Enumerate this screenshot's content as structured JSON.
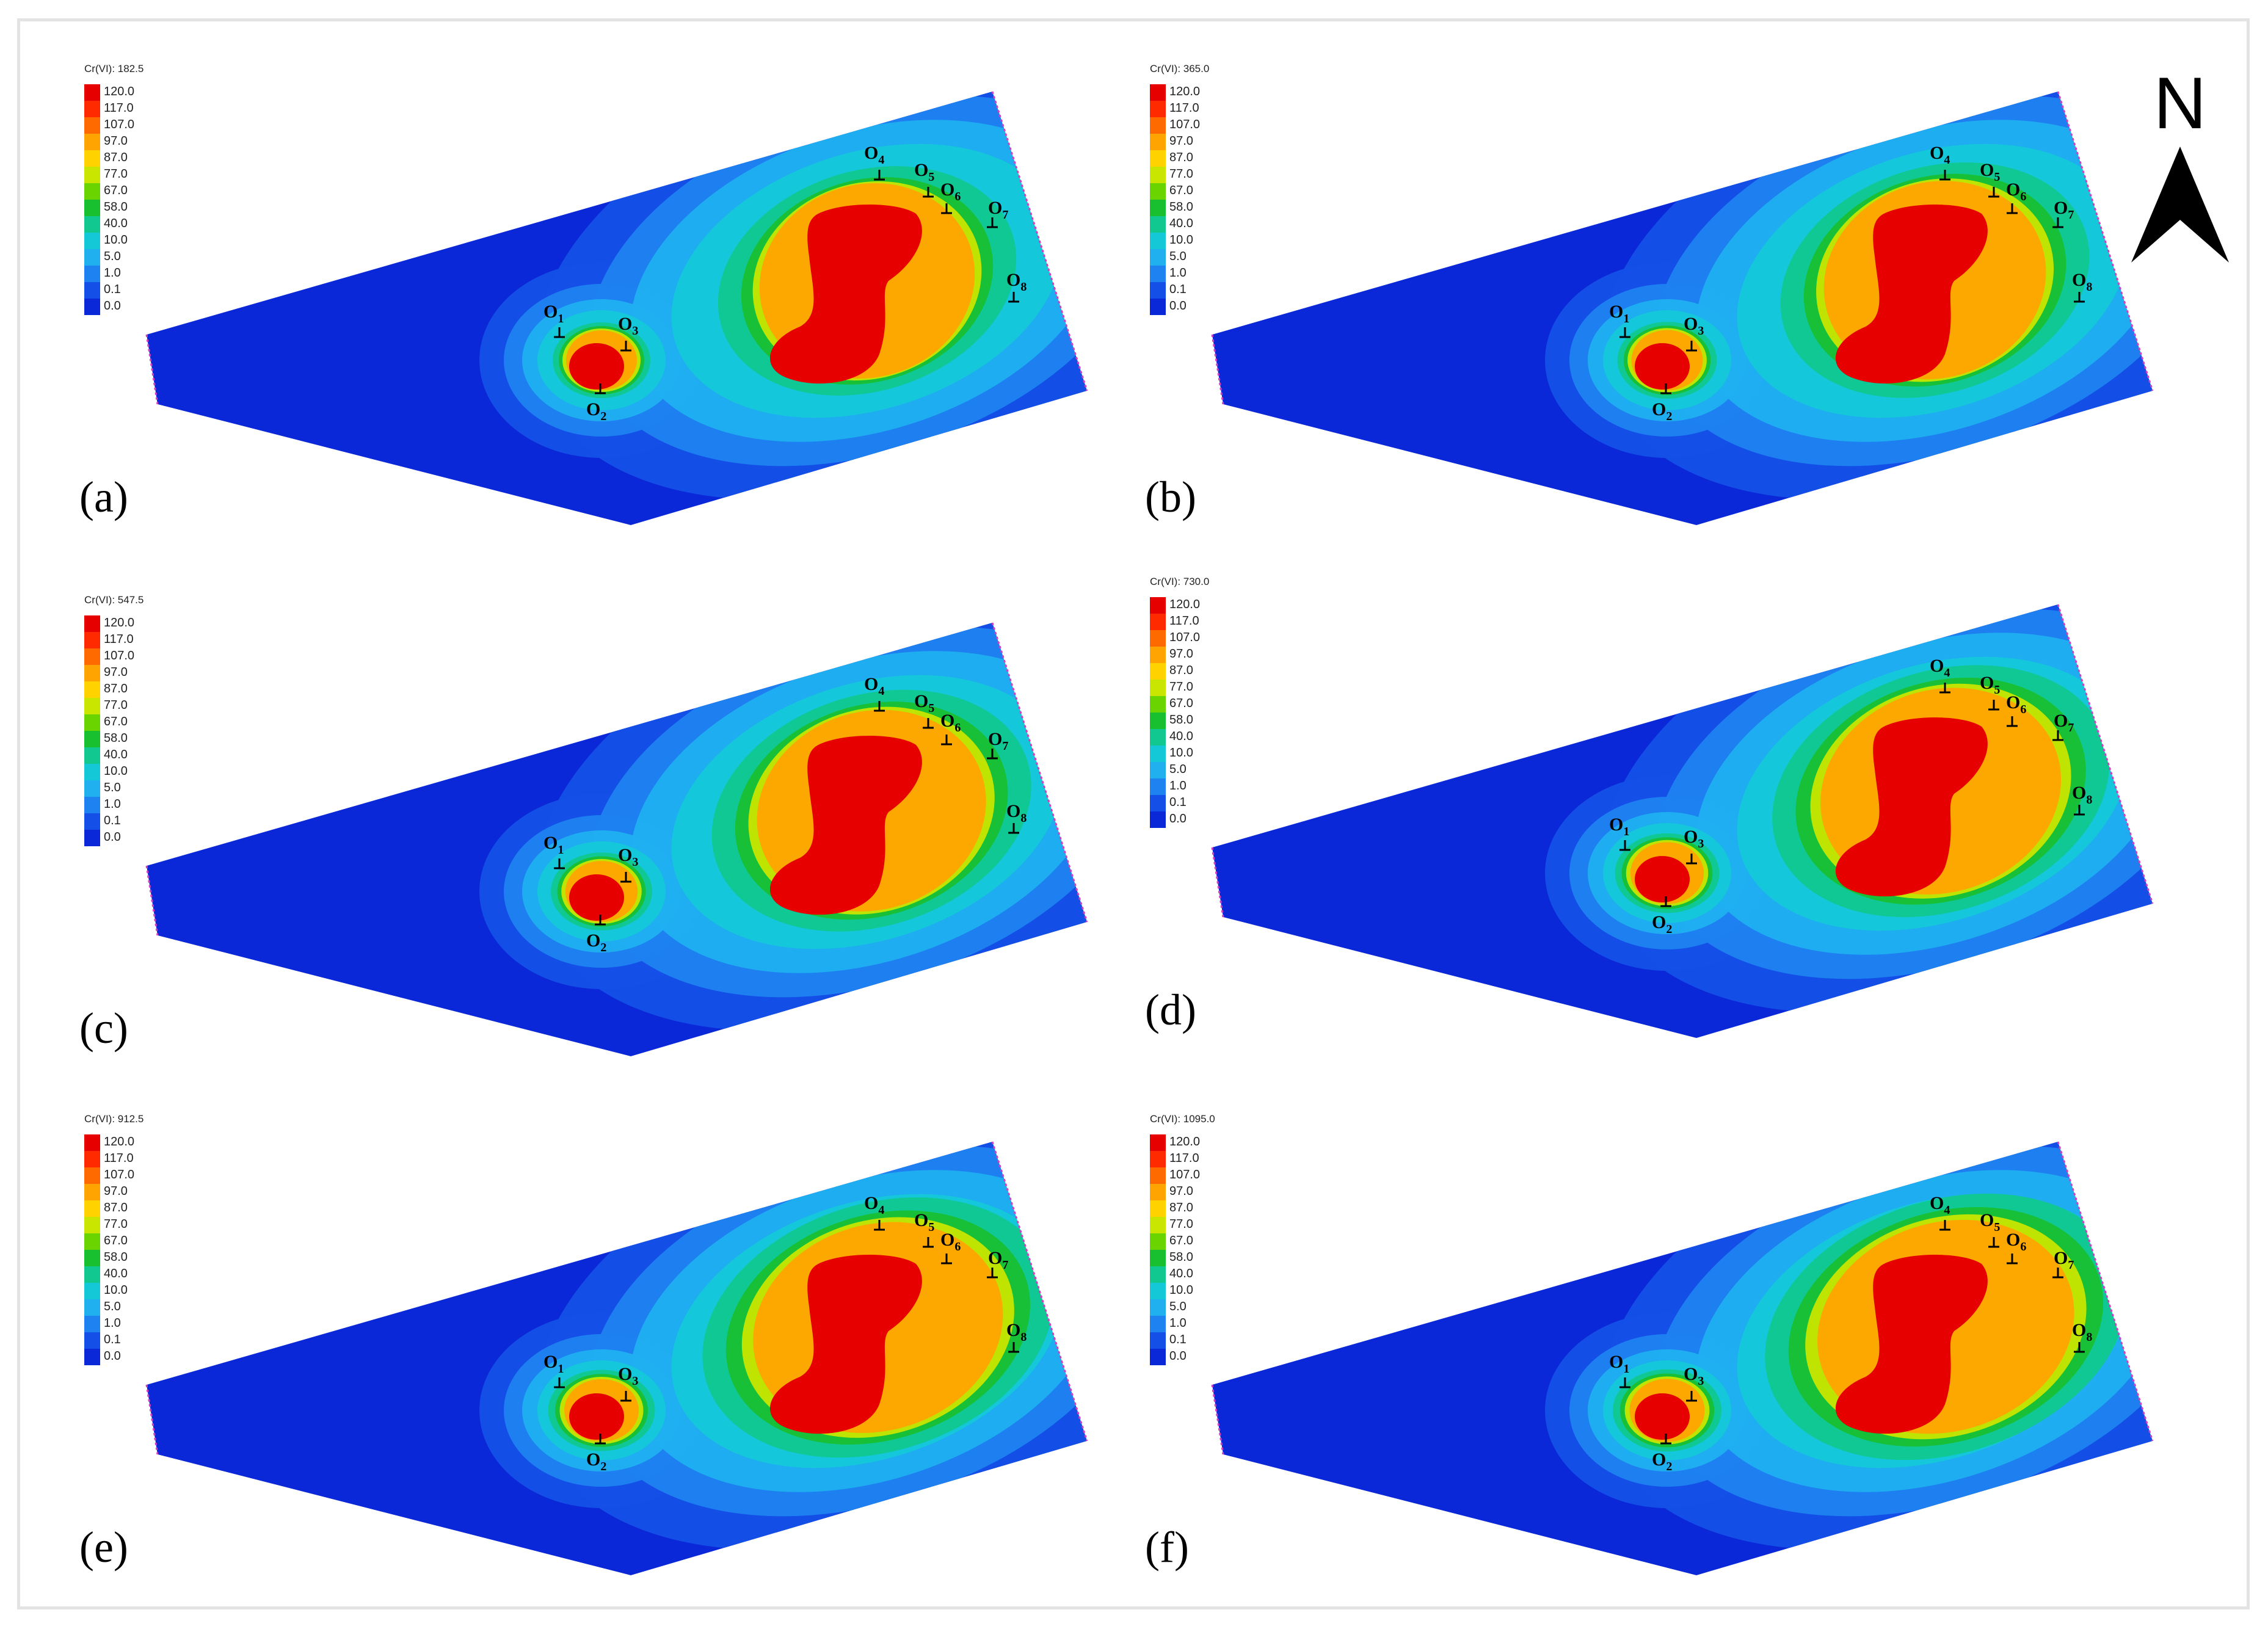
{
  "legend": {
    "parameter": "Cr(VI)",
    "levels": [
      "120.0",
      "117.0",
      "107.0",
      "97.0",
      "87.0",
      "77.0",
      "67.0",
      "58.0",
      "40.0",
      "10.0",
      "5.0",
      "1.0",
      "0.1",
      "0.0"
    ],
    "colors": [
      "#e60000",
      "#ff2a00",
      "#ff6a00",
      "#ffa400",
      "#ffd200",
      "#c8e600",
      "#6ad400",
      "#18c030",
      "#10c890",
      "#14c8d8",
      "#20b0f0",
      "#1e82f0",
      "#1450e8",
      "#0a28d8"
    ]
  },
  "panels": [
    {
      "label": "(a)",
      "time": "Cr(VI): 182.5"
    },
    {
      "label": "(b)",
      "time": "Cr(VI): 365.0"
    },
    {
      "label": "(c)",
      "time": "Cr(VI): 547.5"
    },
    {
      "label": "(d)",
      "time": "Cr(VI): 730.0"
    },
    {
      "label": "(e)",
      "time": "Cr(VI): 912.5"
    },
    {
      "label": "(f)",
      "time": "Cr(VI): 1095.0"
    }
  ],
  "wells": [
    {
      "name": "O",
      "sub": "1"
    },
    {
      "name": "O",
      "sub": "2"
    },
    {
      "name": "O",
      "sub": "3"
    },
    {
      "name": "O",
      "sub": "4"
    },
    {
      "name": "O",
      "sub": "5"
    },
    {
      "name": "O",
      "sub": "6"
    },
    {
      "name": "O",
      "sub": "7"
    },
    {
      "name": "O",
      "sub": "8"
    }
  ],
  "north_arrow": {
    "label": "N"
  }
}
